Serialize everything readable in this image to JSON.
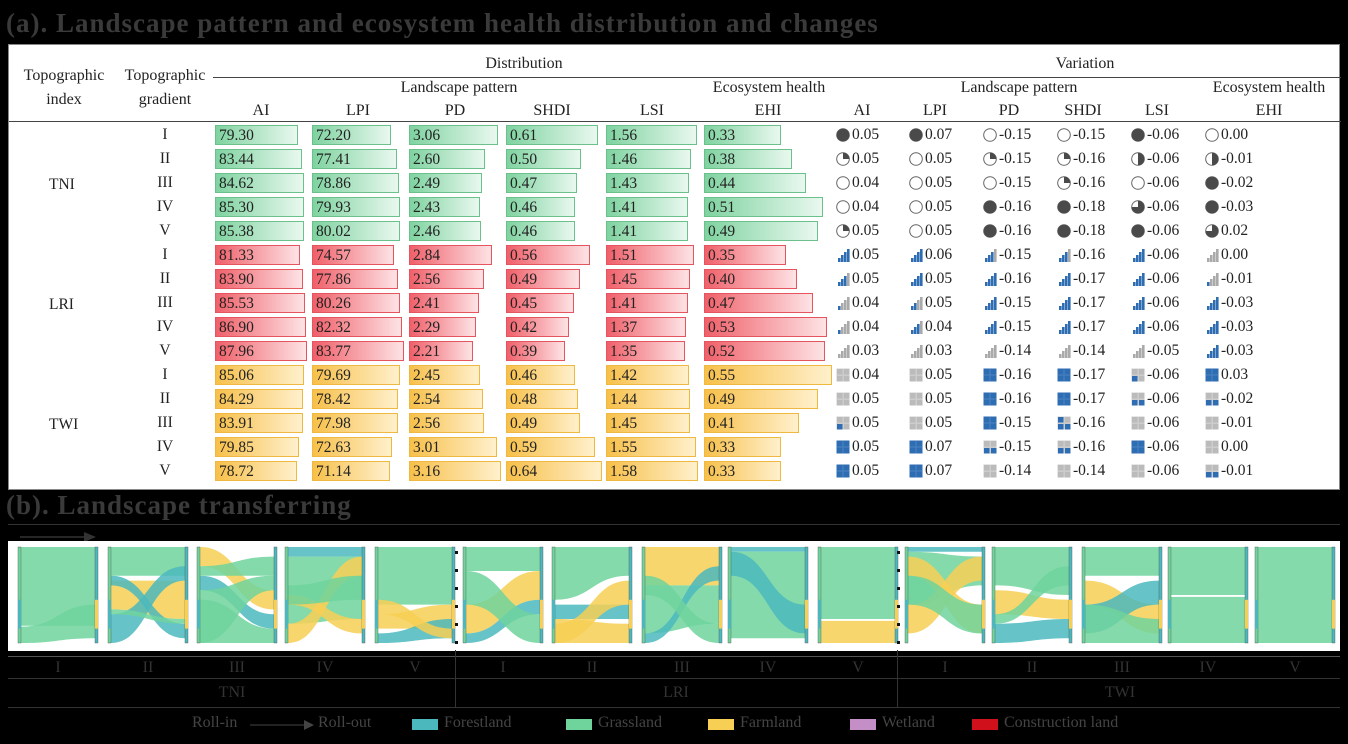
{
  "panel_a_title": "(a). Landscape pattern and ecosystem health distribution and changes",
  "panel_b_title": "(b). Landscape transferring",
  "chart_data": [
    {
      "type": "table",
      "headers": {
        "index": "Topographic index",
        "index_l1": "Topographic",
        "index_l2": "index",
        "gradient_l1": "Topographic",
        "gradient_l2": "gradient",
        "distribution": "Distribution",
        "variation": "Variation",
        "landscape_pattern": "Landscape pattern",
        "ecosystem_health": "Ecosystem health",
        "columns": [
          "AI",
          "LPI",
          "PD",
          "SHDI",
          "LSI",
          "EHI"
        ]
      },
      "groups": [
        {
          "index": "TNI",
          "color": "#6fcf97",
          "rows": [
            {
              "gradient": "I",
              "dist": [
                "79.30",
                "72.20",
                "3.06",
                "0.61",
                "1.56",
                "0.33"
              ],
              "var": [
                "0.05",
                "0.07",
                "-0.15",
                "-0.15",
                "-0.06",
                "0.00"
              ],
              "var_level": [
                4,
                4,
                0,
                0,
                4,
                0
              ]
            },
            {
              "gradient": "II",
              "dist": [
                "83.44",
                "77.41",
                "2.60",
                "0.50",
                "1.46",
                "0.38"
              ],
              "var": [
                "0.05",
                "0.05",
                "-0.15",
                "-0.16",
                "-0.06",
                "-0.01"
              ],
              "var_level": [
                1,
                0,
                1,
                1,
                2,
                2
              ]
            },
            {
              "gradient": "III",
              "dist": [
                "84.62",
                "78.86",
                "2.49",
                "0.47",
                "1.43",
                "0.44"
              ],
              "var": [
                "0.04",
                "0.05",
                "-0.15",
                "-0.16",
                "-0.06",
                "-0.02"
              ],
              "var_level": [
                0,
                0,
                0,
                1,
                0,
                4
              ]
            },
            {
              "gradient": "IV",
              "dist": [
                "85.30",
                "79.93",
                "2.43",
                "0.46",
                "1.41",
                "0.51"
              ],
              "var": [
                "0.04",
                "0.05",
                "-0.16",
                "-0.18",
                "-0.06",
                "-0.03"
              ],
              "var_level": [
                0,
                0,
                4,
                4,
                3,
                4
              ]
            },
            {
              "gradient": "V",
              "dist": [
                "85.38",
                "80.02",
                "2.46",
                "0.46",
                "1.41",
                "0.49"
              ],
              "var": [
                "0.05",
                "0.05",
                "-0.16",
                "-0.18",
                "-0.06",
                "0.02"
              ],
              "var_level": [
                1,
                0,
                4,
                4,
                4,
                3
              ]
            }
          ]
        },
        {
          "index": "LRI",
          "color": "#f0606a",
          "rows": [
            {
              "gradient": "I",
              "dist": [
                "81.33",
                "74.57",
                "2.84",
                "0.56",
                "1.51",
                "0.35"
              ],
              "var": [
                "0.05",
                "0.06",
                "-0.15",
                "-0.16",
                "-0.06",
                "0.00"
              ],
              "var_level": [
                4,
                4,
                3,
                3,
                4,
                0
              ]
            },
            {
              "gradient": "II",
              "dist": [
                "83.90",
                "77.86",
                "2.56",
                "0.49",
                "1.45",
                "0.40"
              ],
              "var": [
                "0.05",
                "0.05",
                "-0.16",
                "-0.17",
                "-0.06",
                "-0.01"
              ],
              "var_level": [
                3,
                4,
                4,
                4,
                4,
                1
              ]
            },
            {
              "gradient": "III",
              "dist": [
                "85.53",
                "80.26",
                "2.41",
                "0.45",
                "1.41",
                "0.47"
              ],
              "var": [
                "0.04",
                "0.05",
                "-0.15",
                "-0.17",
                "-0.06",
                "-0.03"
              ],
              "var_level": [
                1,
                2,
                4,
                4,
                4,
                4
              ]
            },
            {
              "gradient": "IV",
              "dist": [
                "86.90",
                "82.32",
                "2.29",
                "0.42",
                "1.37",
                "0.53"
              ],
              "var": [
                "0.04",
                "0.04",
                "-0.15",
                "-0.17",
                "-0.06",
                "-0.03"
              ],
              "var_level": [
                1,
                3,
                4,
                4,
                4,
                4
              ]
            },
            {
              "gradient": "V",
              "dist": [
                "87.96",
                "83.77",
                "2.21",
                "0.39",
                "1.35",
                "0.52"
              ],
              "var": [
                "0.03",
                "0.03",
                "-0.14",
                "-0.14",
                "-0.05",
                "-0.03"
              ],
              "var_level": [
                0,
                0,
                0,
                0,
                0,
                4
              ]
            }
          ]
        },
        {
          "index": "TWI",
          "color": "#f7c04a",
          "rows": [
            {
              "gradient": "I",
              "dist": [
                "85.06",
                "79.69",
                "2.45",
                "0.46",
                "1.42",
                "0.55"
              ],
              "var": [
                "0.04",
                "0.05",
                "-0.16",
                "-0.17",
                "-0.06",
                "0.03"
              ],
              "var_level": [
                0,
                0,
                4,
                4,
                1,
                4
              ]
            },
            {
              "gradient": "II",
              "dist": [
                "84.29",
                "78.42",
                "2.54",
                "0.48",
                "1.44",
                "0.49"
              ],
              "var": [
                "0.05",
                "0.05",
                "-0.16",
                "-0.17",
                "-0.06",
                "-0.02"
              ],
              "var_level": [
                0,
                0,
                4,
                4,
                2,
                2
              ]
            },
            {
              "gradient": "III",
              "dist": [
                "83.91",
                "77.98",
                "2.56",
                "0.49",
                "1.45",
                "0.41"
              ],
              "var": [
                "0.05",
                "0.05",
                "-0.15",
                "-0.16",
                "-0.06",
                "-0.01"
              ],
              "var_level": [
                1,
                0,
                4,
                3,
                0,
                0
              ]
            },
            {
              "gradient": "IV",
              "dist": [
                "79.85",
                "72.63",
                "3.01",
                "0.59",
                "1.55",
                "0.33"
              ],
              "var": [
                "0.05",
                "0.07",
                "-0.15",
                "-0.16",
                "-0.06",
                "0.00"
              ],
              "var_level": [
                4,
                4,
                2,
                2,
                4,
                0
              ]
            },
            {
              "gradient": "V",
              "dist": [
                "78.72",
                "71.14",
                "3.16",
                "0.64",
                "1.58",
                "0.33"
              ],
              "var": [
                "0.05",
                "0.07",
                "-0.14",
                "-0.14",
                "-0.06",
                "-0.01"
              ],
              "var_level": [
                4,
                4,
                0,
                0,
                0,
                2
              ]
            }
          ]
        }
      ],
      "variation_icon_types": {
        "TNI": "harvey-ball",
        "LRI": "signal-bars",
        "TWI": "quad-grid"
      }
    },
    {
      "type": "sankey",
      "gradients": [
        "I",
        "II",
        "III",
        "IV",
        "V"
      ],
      "indices": [
        "TNI",
        "LRI",
        "TWI"
      ],
      "legend": {
        "roll_in": "Roll-in",
        "roll_out": "Roll-out",
        "classes": [
          {
            "name": "Forestland",
            "color": "#4bb8bd"
          },
          {
            "name": "Grassland",
            "color": "#6fd39c"
          },
          {
            "name": "Farmland",
            "color": "#f7cf55"
          },
          {
            "name": "Wetland",
            "color": "#c48fc6"
          },
          {
            "name": "Construction land",
            "color": "#d0111b"
          }
        ]
      }
    }
  ]
}
